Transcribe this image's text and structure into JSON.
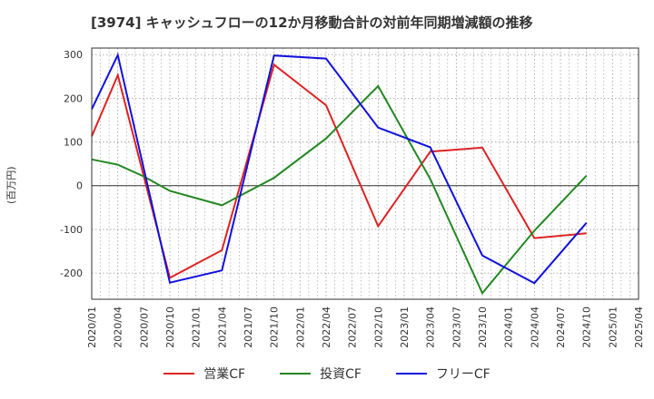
{
  "chart_data": {
    "type": "line",
    "title": "[3974]  キャッシュフローの12か月移動合計の対前年同期増減額の推移",
    "ylabel": "(百万円)",
    "xlabel": "",
    "ylim": [
      -260,
      315
    ],
    "yticks": [
      300,
      200,
      100,
      0,
      -100,
      -200
    ],
    "x": [
      "2020/01",
      "2020/04",
      "2020/07",
      "2020/10",
      "2021/01",
      "2021/04",
      "2021/07",
      "2021/10",
      "2022/01",
      "2022/04",
      "2022/07",
      "2022/10",
      "2023/01",
      "2023/04",
      "2023/07",
      "2023/10",
      "2024/01",
      "2024/04",
      "2024/07",
      "2024/10",
      "2025/01",
      "2025/04"
    ],
    "series": [
      {
        "name": "営業CF",
        "color": "#dd2222",
        "values": [
          113,
          253,
          null,
          -211,
          null,
          -148,
          null,
          277,
          null,
          184,
          null,
          -93,
          null,
          78,
          null,
          87,
          null,
          -120,
          null,
          -109,
          null,
          null
        ]
      },
      {
        "name": "投資CF",
        "color": "#228822",
        "values": [
          60,
          48,
          21,
          -12,
          null,
          -45,
          null,
          18,
          null,
          108,
          null,
          228,
          null,
          15,
          null,
          -246,
          null,
          -103,
          null,
          23,
          null,
          null
        ]
      },
      {
        "name": "フリーCF",
        "color": "#1111dd",
        "values": [
          175,
          299,
          null,
          -222,
          null,
          -194,
          null,
          298,
          null,
          291,
          null,
          133,
          null,
          88,
          null,
          -160,
          null,
          -223,
          null,
          -85,
          null,
          null
        ]
      }
    ]
  }
}
